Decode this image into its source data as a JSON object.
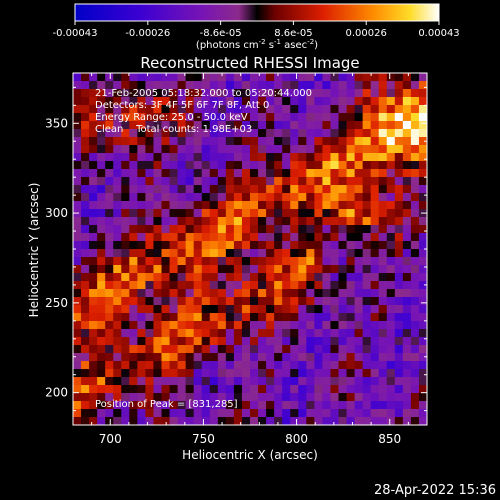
{
  "chart_data": {
    "type": "heatmap",
    "title": "Reconstructed RHESSI Image",
    "xlabel": "Heliocentric X (arcsec)",
    "ylabel": "Heliocentric Y (arcsec)",
    "xlim": [
      680,
      870
    ],
    "ylim": [
      182,
      378
    ],
    "x_ticks": [
      700,
      750,
      800,
      850
    ],
    "y_ticks": [
      200,
      250,
      300,
      350
    ],
    "colorbar": {
      "range": [
        -0.00043,
        0.00043
      ],
      "tick_labels": [
        "-0.00043",
        "-0.00026",
        "-8.6e-05",
        "8.6e-05",
        "0.00026",
        "0.00043"
      ],
      "units_text": "(photons cm",
      "units_sup1": "-2",
      "units_mid1": " s",
      "units_sup2": "-1",
      "units_mid2": " asec",
      "units_sup3": "-2",
      "units_end": ")"
    },
    "annotations": [
      "21-Feb-2005 05:18:32.000 to 05:20:44.000",
      "Detectors: 3F 4F 5F 6F 7F 8F, Att 0",
      "Energy Range: 25.0 - 50.0 keV",
      "Clean    Total counts: 1.98E+03"
    ],
    "peak_label": "Position of Peak = [831,285]",
    "peak": [
      831,
      285
    ]
  },
  "footer": {
    "date": "28-Apr-2022 15:36"
  }
}
